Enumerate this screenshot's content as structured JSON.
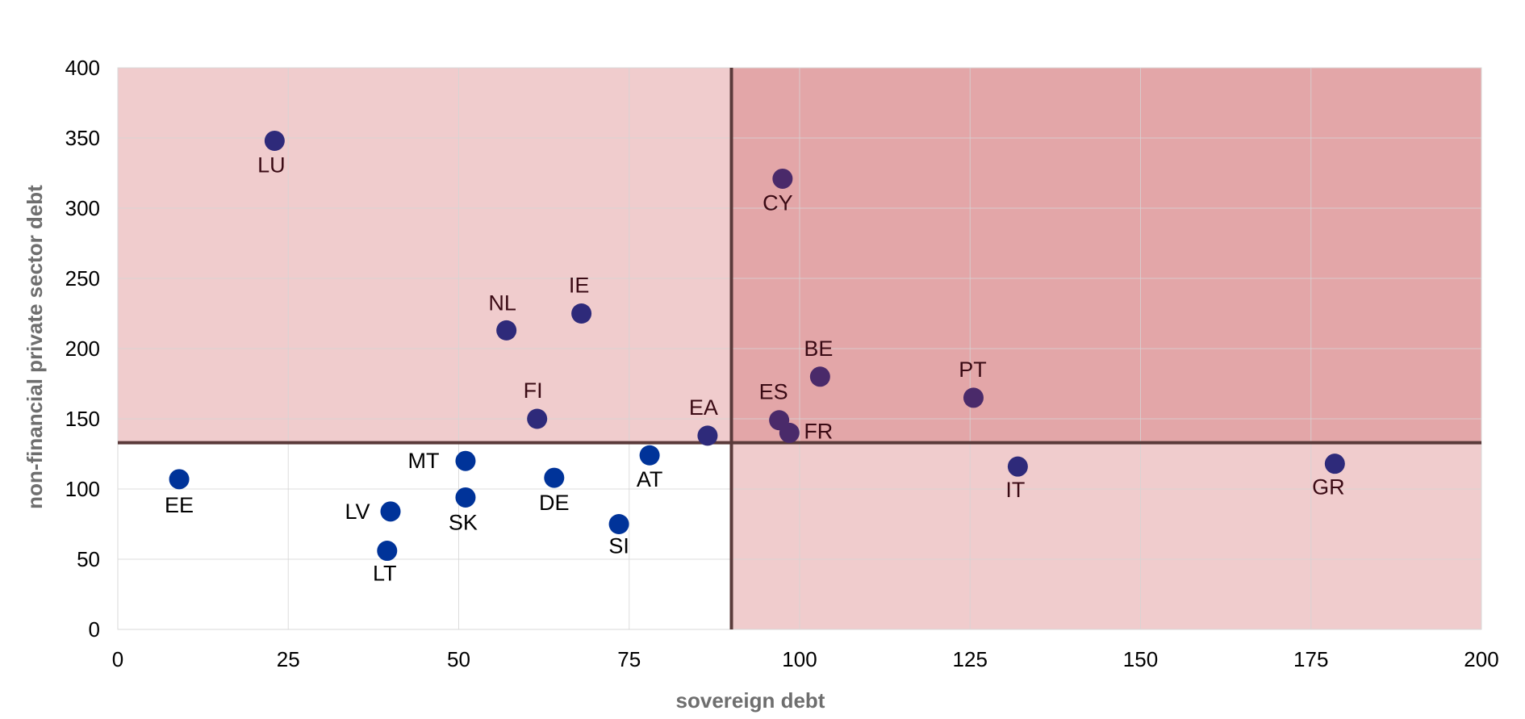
{
  "chart_data": {
    "type": "scatter",
    "xlabel": "sovereign debt",
    "ylabel": "non-financial private sector debt",
    "xlim": [
      0,
      200
    ],
    "ylim": [
      0,
      400
    ],
    "xticks": [
      "0",
      "25",
      "50",
      "75",
      "100",
      "125",
      "150",
      "175",
      "200"
    ],
    "yticks": [
      "0",
      "50",
      "100",
      "150",
      "200",
      "250",
      "300",
      "350",
      "400"
    ],
    "grid": true,
    "thresholds": {
      "x": 90,
      "y": 133
    },
    "colors": {
      "point_low": "#003399",
      "point_high_y": "#2e2a7a",
      "point_both_high": "#4a2a6a",
      "label_low": "#000000",
      "label_high": "#3a0a14",
      "region_one_high": "#f0cccd",
      "region_both_high": "#e3a6a8",
      "threshold_line": "#5a3a3a",
      "grid": "#d4d4d4"
    },
    "points": [
      {
        "label": "LU",
        "x": 23,
        "y": 348
      },
      {
        "label": "CY",
        "x": 97.5,
        "y": 321
      },
      {
        "label": "IE",
        "x": 68,
        "y": 225
      },
      {
        "label": "NL",
        "x": 57,
        "y": 213
      },
      {
        "label": "BE",
        "x": 103,
        "y": 180
      },
      {
        "label": "PT",
        "x": 125.5,
        "y": 165
      },
      {
        "label": "FI",
        "x": 61.5,
        "y": 150
      },
      {
        "label": "ES",
        "x": 97,
        "y": 149
      },
      {
        "label": "FR",
        "x": 98.5,
        "y": 140
      },
      {
        "label": "EA",
        "x": 86.5,
        "y": 138
      },
      {
        "label": "AT",
        "x": 78,
        "y": 124
      },
      {
        "label": "MT",
        "x": 51,
        "y": 120
      },
      {
        "label": "GR",
        "x": 178.5,
        "y": 118
      },
      {
        "label": "IT",
        "x": 132,
        "y": 116
      },
      {
        "label": "DE",
        "x": 64,
        "y": 108
      },
      {
        "label": "EE",
        "x": 9,
        "y": 107
      },
      {
        "label": "SK",
        "x": 51,
        "y": 94
      },
      {
        "label": "LV",
        "x": 40,
        "y": 84
      },
      {
        "label": "SI",
        "x": 73.5,
        "y": 75
      },
      {
        "label": "LT",
        "x": 39.5,
        "y": 56
      }
    ]
  }
}
